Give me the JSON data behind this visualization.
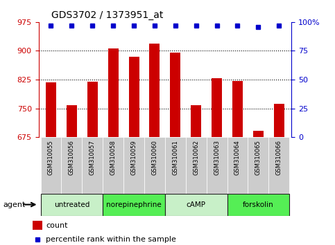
{
  "title": "GDS3702 / 1373951_at",
  "samples": [
    "GSM310055",
    "GSM310056",
    "GSM310057",
    "GSM310058",
    "GSM310059",
    "GSM310060",
    "GSM310061",
    "GSM310062",
    "GSM310063",
    "GSM310064",
    "GSM310065",
    "GSM310066"
  ],
  "counts": [
    818,
    758,
    820,
    907,
    885,
    918,
    896,
    758,
    828,
    822,
    692,
    762
  ],
  "percentile_ranks": [
    97,
    97,
    97,
    97,
    97,
    97,
    97,
    97,
    97,
    97,
    96,
    97
  ],
  "ylim_left": [
    675,
    975
  ],
  "yticks_left": [
    675,
    750,
    825,
    900,
    975
  ],
  "ylim_right": [
    0,
    100
  ],
  "yticks_right": [
    0,
    25,
    50,
    75,
    100
  ],
  "bar_color": "#cc0000",
  "dot_color": "#0000cc",
  "groups": [
    {
      "label": "untreated",
      "indices": [
        0,
        1,
        2
      ],
      "color_light": "#c8f0c8",
      "color_dark": "#55dd55"
    },
    {
      "label": "norepinephrine",
      "indices": [
        3,
        4,
        5
      ],
      "color_light": "#c8f0c8",
      "color_dark": "#55dd55"
    },
    {
      "label": "cAMP",
      "indices": [
        6,
        7,
        8
      ],
      "color_light": "#c8f0c8",
      "color_dark": "#55dd55"
    },
    {
      "label": "forskolin",
      "indices": [
        9,
        10,
        11
      ],
      "color_light": "#c8f0c8",
      "color_dark": "#55dd55"
    }
  ],
  "group_colors": [
    "#c8f0c8",
    "#55ee55",
    "#c8f0c8",
    "#55ee55"
  ],
  "agent_label": "agent",
  "legend_count_label": "count",
  "legend_percentile_label": "percentile rank within the sample",
  "bar_width": 0.5,
  "xtick_bg_color": "#cccccc",
  "grid_color": "#000000",
  "grid_linestyle": ":",
  "grid_linewidth": 0.8
}
